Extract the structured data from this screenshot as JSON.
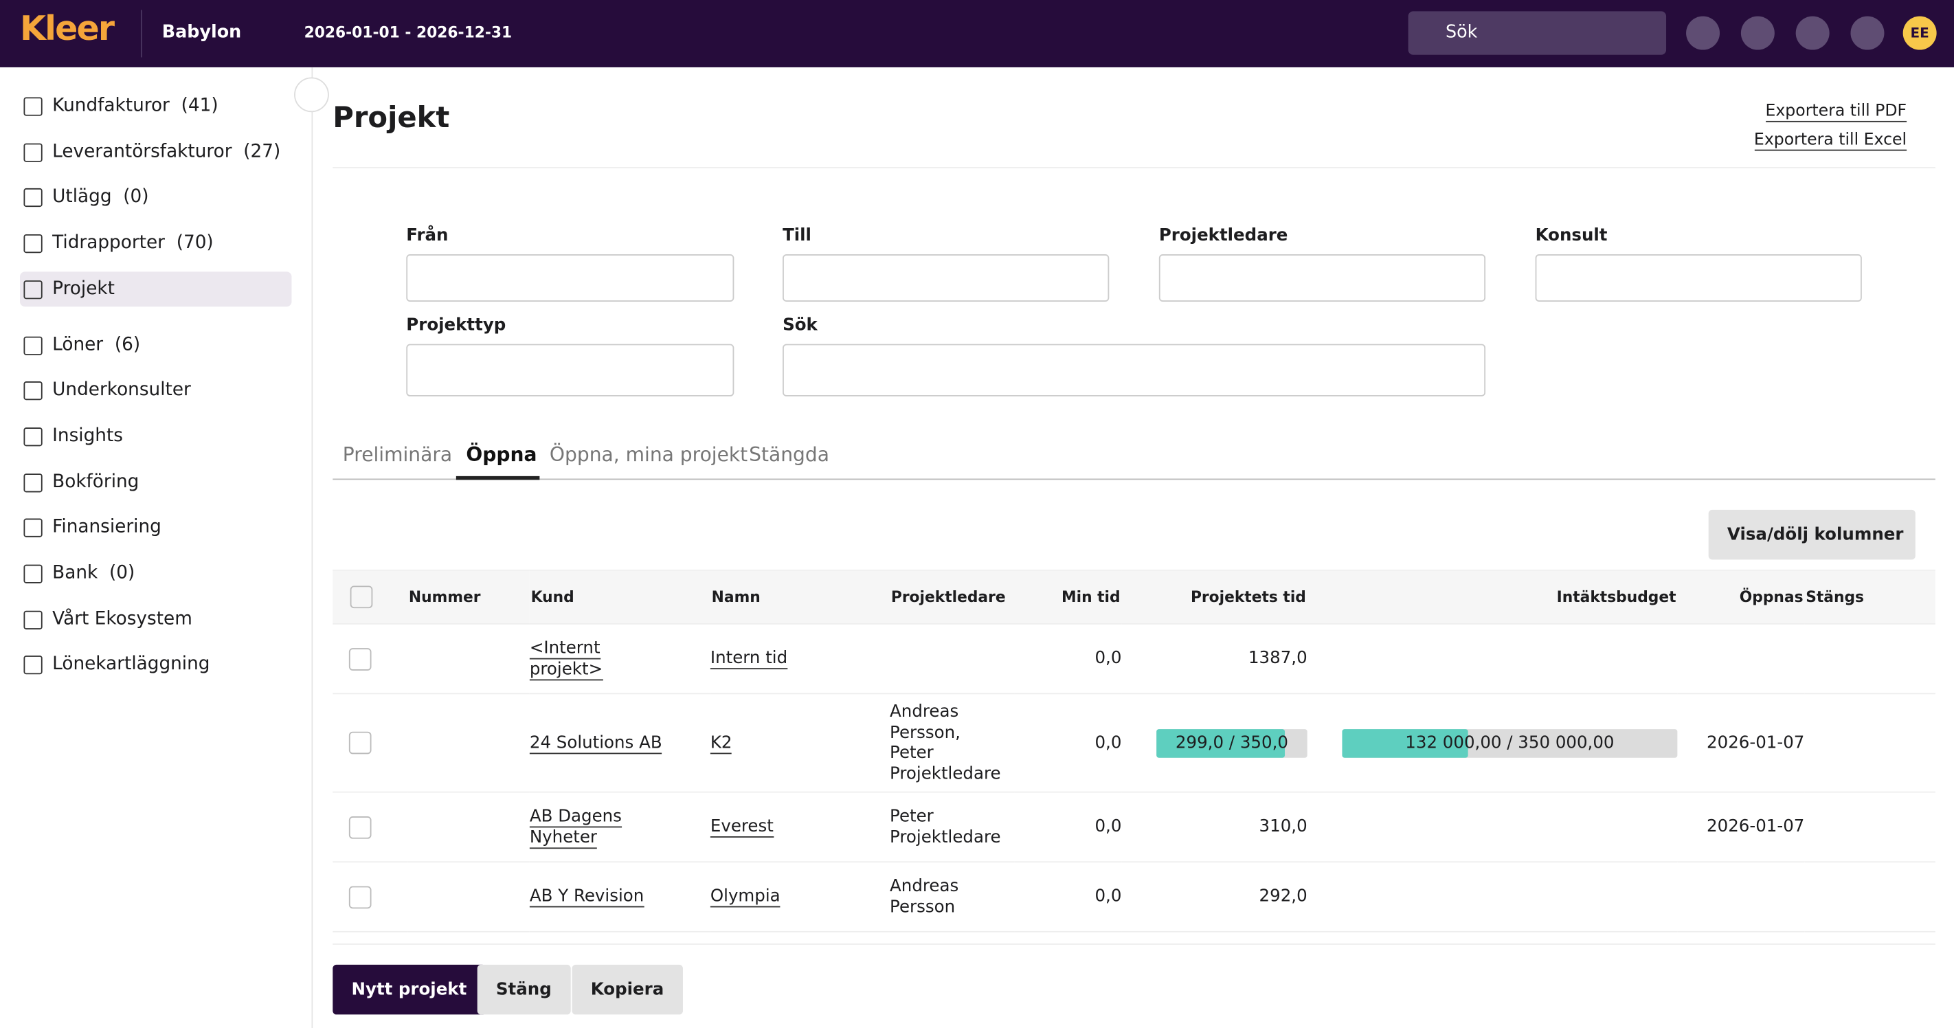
{
  "header": {
    "logo": "Kleer",
    "company": "Babylon",
    "period": "2026-01-01 - 2026-12-31",
    "search": "Sök",
    "avatar": "EE"
  },
  "sidebar": [
    {
      "label": "Kundfakturor",
      "count": "(41)"
    },
    {
      "label": "Leverantörsfakturor",
      "count": "(27)"
    },
    {
      "label": "Utlägg",
      "count": "(0)"
    },
    {
      "label": "Tidrapporter",
      "count": "(70)"
    },
    {
      "label": "Projekt"
    },
    {
      "label": "Löner",
      "count": "(6)"
    },
    {
      "label": "Underkonsulter"
    },
    {
      "label": "Insights"
    },
    {
      "label": "Bokföring"
    },
    {
      "label": "Finansiering"
    },
    {
      "label": "Bank",
      "count": "(0)"
    },
    {
      "label": "Vårt Ekosystem"
    },
    {
      "label": "Lönekartläggning"
    }
  ],
  "page": {
    "title": "Projekt",
    "export_pdf": "Exportera till PDF",
    "export_excel": "Exportera till Excel"
  },
  "filters": {
    "from": "Från",
    "to": "Till",
    "manager": "Projektledare",
    "consultant": "Konsult",
    "type": "Projekttyp",
    "search": "Sök"
  },
  "tabs": [
    "Preliminära",
    "Öppna",
    "Öppna, mina projekt",
    "Stängda"
  ],
  "toggle_columns": "Visa/dölj kolumner",
  "table": {
    "columns": [
      {
        "key": "nummer",
        "label": "Nummer"
      },
      {
        "key": "kund",
        "label": "Kund"
      },
      {
        "key": "namn",
        "label": "Namn"
      },
      {
        "key": "projektledare",
        "label": "Projektledare"
      },
      {
        "key": "min_tid",
        "label": "Min tid"
      },
      {
        "key": "projektets_tid",
        "label": "Projektets tid"
      },
      {
        "key": "intaktsbudget",
        "label": "Intäktsbudget"
      },
      {
        "key": "oppnas",
        "label": "Öppnas"
      },
      {
        "key": "stangs",
        "label": "Stängs"
      }
    ],
    "rows": [
      {
        "kund": "<Internt projekt>",
        "namn": "Intern tid",
        "min_tid": "0,0",
        "projektets_tid": "1387,0"
      },
      {
        "kund": "24 Solutions AB",
        "namn": "K2",
        "projektledare": "Andreas Persson, Peter Projektledare",
        "min_tid": "0,0",
        "projektets_tid": {
          "label": "299,0 / 350,0",
          "value": 299,
          "max": 350
        },
        "intaktsbudget": {
          "label": "132 000,00 / 350 000,00",
          "value": 132000,
          "max": 350000
        },
        "oppnas": "2026-01-07"
      },
      {
        "kund": "AB Dagens Nyheter",
        "namn": "Everest",
        "projektledare": "Peter Projektledare",
        "min_tid": "0,0",
        "projektets_tid": "310,0",
        "oppnas": "2026-01-07"
      },
      {
        "kund": "AB Y Revision",
        "namn": "Olympia",
        "projektledare": "Andreas Persson",
        "min_tid": "0,0",
        "projektets_tid": "292,0"
      }
    ]
  },
  "buttons": [
    "Nytt projekt",
    "Stäng",
    "Kopiera"
  ]
}
